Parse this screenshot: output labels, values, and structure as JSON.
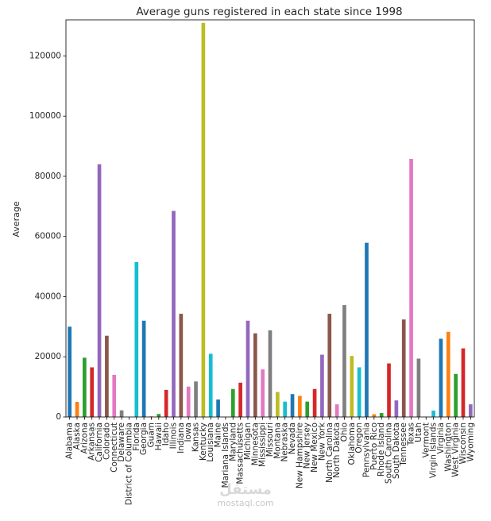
{
  "chart_data": {
    "type": "bar",
    "title": "Average guns registered in each state since 1998",
    "xlabel": "",
    "ylabel": "Average",
    "ylim": [
      0,
      132000
    ],
    "yticks": [
      0,
      20000,
      40000,
      60000,
      80000,
      100000,
      120000
    ],
    "grid": false,
    "legend": "none",
    "colors": [
      "#1f77b4",
      "#ff7f0e",
      "#2ca02c",
      "#d62728",
      "#9467bd",
      "#8c564b",
      "#e377c2",
      "#7f7f7f",
      "#bcbd22",
      "#17becf"
    ],
    "categories": [
      "Alabama",
      "Alaska",
      "Arizona",
      "Arkansas",
      "California",
      "Colorado",
      "Connecticut",
      "Delaware",
      "District of Columbia",
      "Florida",
      "Georgia",
      "Guam",
      "Hawaii",
      "Idaho",
      "Illinois",
      "Indiana",
      "Iowa",
      "Kansas",
      "Kentucky",
      "Louisiana",
      "Maine",
      "Mariana Islands",
      "Maryland",
      "Massachusetts",
      "Michigan",
      "Minnesota",
      "Mississippi",
      "Missouri",
      "Montana",
      "Nebraska",
      "Nevada",
      "New Hampshire",
      "New Jersey",
      "New Mexico",
      "New York",
      "North Carolina",
      "North Dakota",
      "Ohio",
      "Oklahoma",
      "Oregon",
      "Pennsylvania",
      "Puerto Rico",
      "Rhode Island",
      "South Carolina",
      "South Dakota",
      "Tennessee",
      "Texas",
      "Utah",
      "Vermont",
      "Virgin Islands",
      "Virginia",
      "Washington",
      "West Virginia",
      "Wisconsin",
      "Wyoming"
    ],
    "values": [
      30000,
      5000,
      19700,
      16500,
      84000,
      27000,
      14000,
      2200,
      0,
      51500,
      32000,
      200,
      1000,
      9000,
      68500,
      34300,
      10100,
      11800,
      131000,
      21000,
      5800,
      0,
      9300,
      11400,
      32000,
      27800,
      15800,
      28800,
      8300,
      5100,
      7600,
      7000,
      5100,
      9300,
      20700,
      34300,
      4200,
      37200,
      20300,
      16500,
      57900,
      900,
      1300,
      17800,
      5500,
      32400,
      85800,
      19400,
      100,
      2100,
      26000,
      28300,
      14300,
      22800,
      4200
    ]
  },
  "watermark": {
    "text": "مستقل",
    "sub": "mostaql.com"
  }
}
